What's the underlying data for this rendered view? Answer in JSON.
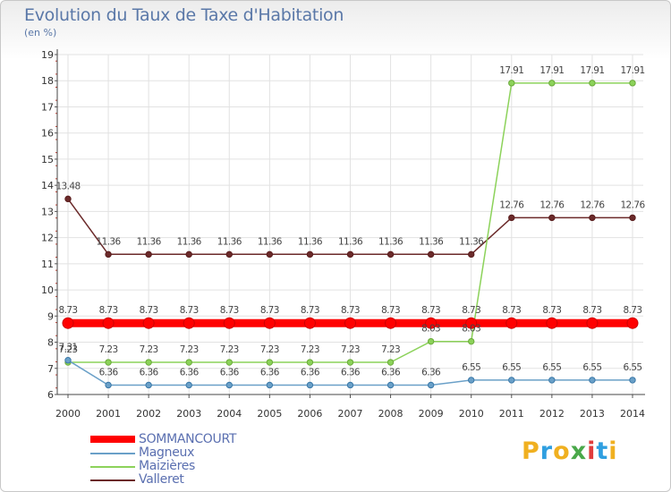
{
  "title": "Evolution du Taux de Taxe d'Habitation",
  "subtitle": "(en %)",
  "logo": {
    "letters": [
      "P",
      "r",
      "o",
      "x",
      "i",
      "t",
      "i"
    ],
    "colors": [
      "#f0b020",
      "#2f9fe0",
      "#f0b020",
      "#4aa84a",
      "#e03c3c",
      "#2f9fe0",
      "#f0b020"
    ]
  },
  "chart_data": {
    "type": "line",
    "title": "Evolution du Taux de Taxe d'Habitation",
    "ylabel": "(en %)",
    "xlabel": "",
    "ylim": [
      6,
      19
    ],
    "yticks": [
      "6",
      "7",
      "8",
      "9",
      "10",
      "11",
      "12",
      "13",
      "14",
      "15",
      "16",
      "17",
      "18",
      "19"
    ],
    "x": [
      "2000",
      "2001",
      "2002",
      "2003",
      "2004",
      "2005",
      "2006",
      "2007",
      "2008",
      "2009",
      "2010",
      "2011",
      "2012",
      "2013",
      "2014"
    ],
    "series": [
      {
        "name": "Valleret",
        "color": "#6b2a2a",
        "values": [
          13.48,
          11.36,
          11.36,
          11.36,
          11.36,
          11.36,
          11.36,
          11.36,
          11.36,
          11.36,
          11.36,
          12.76,
          12.76,
          12.76,
          12.76
        ],
        "labels": [
          "13.48",
          "11.36",
          "11.36",
          "11.36",
          "11.36",
          "11.36",
          "11.36",
          "11.36",
          "11.36",
          "11.36",
          "11.36",
          "12.76",
          "12.76",
          "12.76",
          "12.76"
        ]
      },
      {
        "name": "Maizières",
        "color": "#8cd25a",
        "values": [
          7.23,
          7.23,
          7.23,
          7.23,
          7.23,
          7.23,
          7.23,
          7.23,
          7.23,
          8.03,
          8.03,
          17.91,
          17.91,
          17.91,
          17.91
        ],
        "labels": [
          "7.23",
          "7.23",
          "7.23",
          "7.23",
          "7.23",
          "7.23",
          "7.23",
          "7.23",
          "7.23",
          "8.03",
          "8.03",
          "17.91",
          "17.91",
          "17.91",
          "17.91"
        ]
      },
      {
        "name": "Magneux",
        "color": "#6aa0c8",
        "values": [
          7.31,
          6.36,
          6.36,
          6.36,
          6.36,
          6.36,
          6.36,
          6.36,
          6.36,
          6.36,
          6.55,
          6.55,
          6.55,
          6.55,
          6.55
        ],
        "labels": [
          "7.31",
          "6.36",
          "6.36",
          "6.36",
          "6.36",
          "6.36",
          "6.36",
          "6.36",
          "6.36",
          "6.36",
          "6.55",
          "6.55",
          "6.55",
          "6.55",
          "6.55"
        ]
      },
      {
        "name": "SOMMANCOURT",
        "color": "#ff0000",
        "values": [
          8.73,
          8.73,
          8.73,
          8.73,
          8.73,
          8.73,
          8.73,
          8.73,
          8.73,
          8.73,
          8.73,
          8.73,
          8.73,
          8.73,
          8.73
        ],
        "labels": [
          "8.73",
          "8.73",
          "8.73",
          "8.73",
          "8.73",
          "8.73",
          "8.73",
          "8.73",
          "8.73",
          "8.73",
          "8.73",
          "8.73",
          "8.73",
          "8.73",
          "8.73"
        ]
      }
    ],
    "legend": [
      "SOMMANCOURT",
      "Magneux",
      "Maizières",
      "Valleret"
    ],
    "legend_position": "bottom-left",
    "grid": true
  }
}
